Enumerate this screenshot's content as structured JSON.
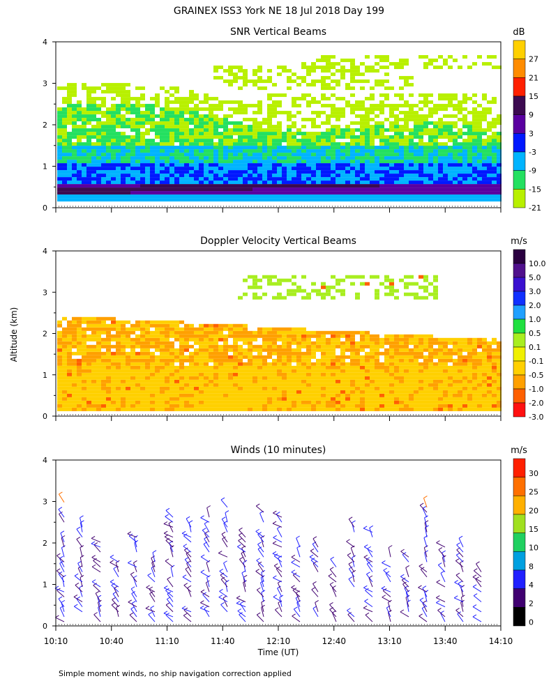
{
  "title": "GRAINEX ISS3 York NE  18 Jul 2018 Day 199",
  "ylabel": "Altitude (km)",
  "xlabel": "Time (UT)",
  "footnote": "Simple moment winds, no ship navigation correction applied",
  "chart_data": [
    {
      "type": "heatmap",
      "title": "SNR Vertical Beams",
      "xlabel": "Time (UT)",
      "ylabel": "Altitude (km)",
      "ylim": [
        0,
        4
      ],
      "yticks": [
        "0",
        "1",
        "2",
        "3",
        "4"
      ],
      "xticks": [
        "10:10",
        "10:40",
        "11:10",
        "11:40",
        "12:10",
        "12:40",
        "13:10",
        "13:40",
        "14:10"
      ],
      "colorbar": {
        "unit": "dB",
        "labels": [
          "27",
          "21",
          "15",
          "9",
          "3",
          "-3",
          "-9",
          "-15",
          "-21"
        ],
        "colors": [
          "#ffd000",
          "#ff8c00",
          "#ff2000",
          "#3c0a50",
          "#5a00a0",
          "#0018ff",
          "#00b4ff",
          "#24e060",
          "#b8f000"
        ]
      },
      "layers": [
        {
          "alt_range": [
            0.15,
            0.55
          ],
          "value_db": 3
        },
        {
          "alt_range": [
            0.55,
            1.05
          ],
          "value_db": -3
        },
        {
          "alt_range": [
            1.05,
            1.45
          ],
          "value_db": -9
        },
        {
          "alt_range": [
            1.45,
            2.2
          ],
          "value_db": -15
        },
        {
          "alt_range": [
            2.2,
            2.8
          ],
          "value_db": -21
        },
        {
          "alt_range": [
            2.8,
            3.6
          ],
          "value_db": -21
        }
      ]
    },
    {
      "type": "heatmap",
      "title": "Doppler Velocity Vertical Beams",
      "xlabel": "Time (UT)",
      "ylabel": "Altitude (km)",
      "ylim": [
        0,
        4
      ],
      "yticks": [
        "0",
        "1",
        "2",
        "3",
        "4"
      ],
      "xticks": [
        "10:10",
        "10:40",
        "11:10",
        "11:40",
        "12:10",
        "12:40",
        "13:10",
        "13:40",
        "14:10"
      ],
      "colorbar": {
        "unit": "m/s",
        "labels": [
          "10.0",
          "5.0",
          "3.0",
          "2.0",
          "1.0",
          "0.5",
          "0.1",
          "-0.1",
          "-0.5",
          "-1.0",
          "-2.0",
          "-3.0"
        ],
        "colors": [
          "#2a0040",
          "#50108c",
          "#3a10d0",
          "#1030ff",
          "#20a0ff",
          "#20e040",
          "#a8ee20",
          "#f0f000",
          "#ffd000",
          "#ffa000",
          "#ff6000",
          "#ff1010"
        ]
      },
      "layers": [
        {
          "alt_range": [
            0.1,
            1.8
          ],
          "value_ms": -0.3
        },
        {
          "alt_range": [
            1.8,
            2.5
          ],
          "value_ms": -0.5
        },
        {
          "alt_range": [
            2.8,
            3.6
          ],
          "value_ms": 0.1
        }
      ]
    },
    {
      "type": "scatter",
      "title": "Winds (10 minutes)",
      "xlabel": "Time (UT)",
      "ylabel": "Altitude (km)",
      "ylim": [
        0,
        4
      ],
      "yticks": [
        "0",
        "1",
        "2",
        "3",
        "4"
      ],
      "xticks": [
        "10:10",
        "10:40",
        "11:10",
        "11:40",
        "12:10",
        "12:40",
        "13:10",
        "13:40",
        "14:10"
      ],
      "marker": "wind barbs",
      "colorbar": {
        "unit": "m/s",
        "labels": [
          "30",
          "25",
          "20",
          "15",
          "10",
          "8",
          "4",
          "2",
          "0"
        ],
        "colors": [
          "#ff2000",
          "#ff7000",
          "#ffb000",
          "#a0e020",
          "#20d060",
          "#00a0e0",
          "#2020ff",
          "#400070",
          "#000000"
        ]
      }
    }
  ]
}
